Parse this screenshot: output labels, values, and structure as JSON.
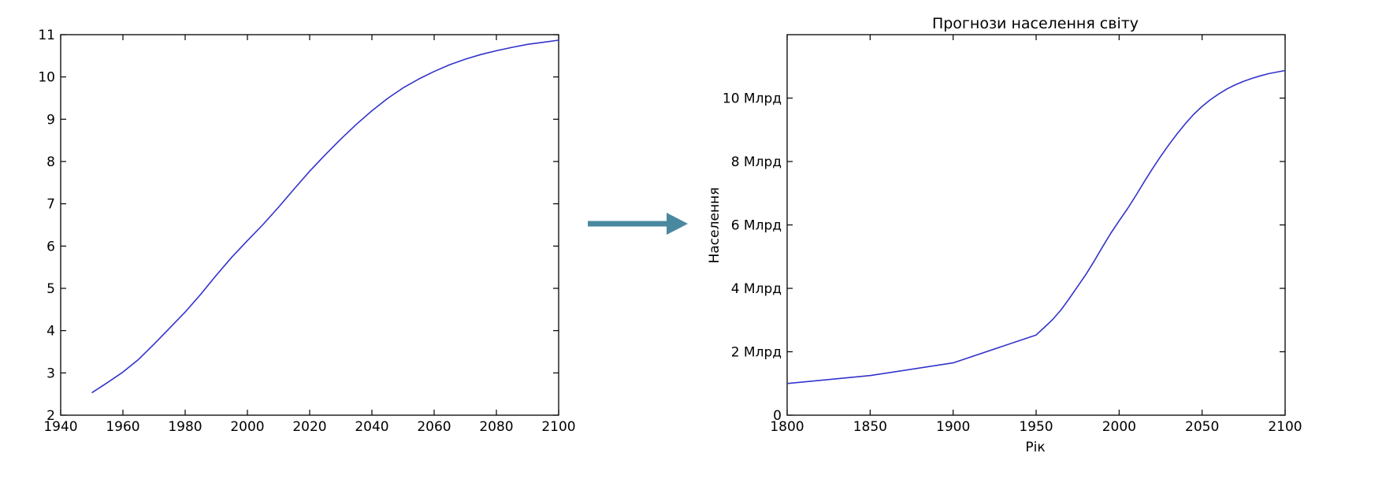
{
  "arrow": {
    "color": "#4a88a0",
    "icon": "right-arrow-icon"
  },
  "chart_data": [
    {
      "type": "line",
      "title": "",
      "xlabel": "",
      "ylabel": "",
      "xlim": [
        1940,
        2100
      ],
      "ylim": [
        2,
        11
      ],
      "xticks": [
        1940,
        1960,
        1980,
        2000,
        2020,
        2040,
        2060,
        2080,
        2100
      ],
      "xtick_labels": [
        "1940",
        "1960",
        "1980",
        "2000",
        "2020",
        "2040",
        "2060",
        "2080",
        "2100"
      ],
      "yticks": [
        2,
        3,
        4,
        5,
        6,
        7,
        8,
        9,
        10,
        11
      ],
      "ytick_labels": [
        "2",
        "3",
        "4",
        "5",
        "6",
        "7",
        "8",
        "9",
        "10",
        "11"
      ],
      "grid": false,
      "series": [
        {
          "color": "#3333cc",
          "x": [
            1950,
            1955,
            1960,
            1965,
            1970,
            1975,
            1980,
            1985,
            1990,
            1995,
            2000,
            2005,
            2010,
            2015,
            2020,
            2025,
            2030,
            2035,
            2040,
            2045,
            2050,
            2055,
            2060,
            2065,
            2070,
            2075,
            2080,
            2085,
            2090,
            2095,
            2100
          ],
          "y": [
            2.53,
            2.77,
            3.02,
            3.32,
            3.68,
            4.06,
            4.44,
            4.86,
            5.31,
            5.74,
            6.13,
            6.51,
            6.92,
            7.35,
            7.77,
            8.16,
            8.53,
            8.88,
            9.2,
            9.49,
            9.74,
            9.95,
            10.13,
            10.29,
            10.42,
            10.53,
            10.62,
            10.7,
            10.77,
            10.82,
            10.87
          ]
        }
      ]
    },
    {
      "type": "line",
      "title": "Прогнози населення світу",
      "xlabel": "Рік",
      "ylabel": "Населення",
      "xlim": [
        1800,
        2100
      ],
      "ylim": [
        0,
        12
      ],
      "xticks": [
        1800,
        1850,
        1900,
        1950,
        2000,
        2050,
        2100
      ],
      "xtick_labels": [
        "1800",
        "1850",
        "1900",
        "1950",
        "2000",
        "2050",
        "2100"
      ],
      "yticks": [
        0,
        2,
        4,
        6,
        8,
        10
      ],
      "ytick_labels": [
        "0",
        "2 Млрд",
        "4 Млрд",
        "6 Млрд",
        "8 Млрд",
        "10 Млрд"
      ],
      "grid": false,
      "series": [
        {
          "color": "#3333cc",
          "x": [
            1800,
            1850,
            1900,
            1950,
            1955,
            1960,
            1965,
            1970,
            1975,
            1980,
            1985,
            1990,
            1995,
            2000,
            2005,
            2010,
            2015,
            2020,
            2025,
            2030,
            2035,
            2040,
            2045,
            2050,
            2055,
            2060,
            2065,
            2070,
            2075,
            2080,
            2085,
            2090,
            2095,
            2100
          ],
          "y": [
            1.0,
            1.25,
            1.65,
            2.53,
            2.77,
            3.02,
            3.32,
            3.68,
            4.06,
            4.44,
            4.86,
            5.31,
            5.74,
            6.13,
            6.51,
            6.92,
            7.35,
            7.77,
            8.16,
            8.53,
            8.88,
            9.2,
            9.49,
            9.74,
            9.95,
            10.13,
            10.29,
            10.42,
            10.53,
            10.62,
            10.7,
            10.77,
            10.82,
            10.87
          ]
        }
      ]
    }
  ]
}
